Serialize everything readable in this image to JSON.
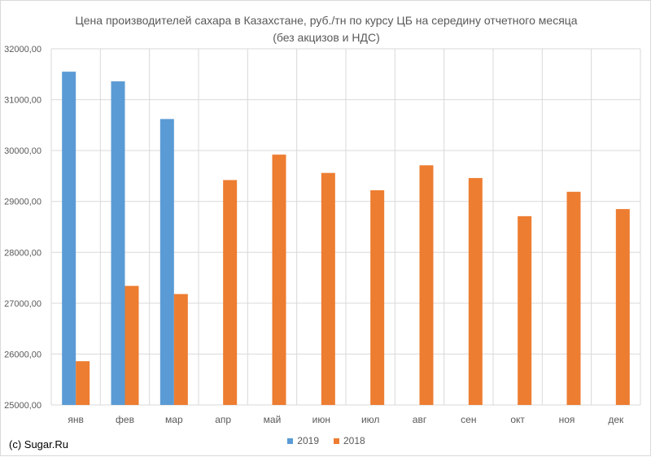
{
  "chart_data": {
    "type": "bar",
    "title": "Цена производителей сахара в Казахстане, руб./тн по курсу ЦБ на  середину отчетного месяца",
    "subtitle": "(без акцизов и НДС)",
    "categories": [
      "янв",
      "фев",
      "мар",
      "апр",
      "май",
      "июн",
      "июл",
      "авг",
      "сен",
      "окт",
      "ноя",
      "дек"
    ],
    "series": [
      {
        "name": "2019",
        "color": "#5b9bd5",
        "values": [
          31550,
          31360,
          30620,
          null,
          null,
          null,
          null,
          null,
          null,
          null,
          null,
          null
        ]
      },
      {
        "name": "2018",
        "color": "#ed7d31",
        "values": [
          25860,
          27340,
          27180,
          29420,
          29920,
          29560,
          29220,
          29710,
          29460,
          28710,
          29190,
          28850
        ]
      }
    ],
    "yticks": [
      "25000,00",
      "26000,00",
      "27000,00",
      "28000,00",
      "29000,00",
      "30000,00",
      "31000,00",
      "32000,00"
    ],
    "ylim": [
      25000,
      32000
    ],
    "grid": true,
    "legend_position": "bottom"
  },
  "credit": "(c) Sugar.Ru"
}
